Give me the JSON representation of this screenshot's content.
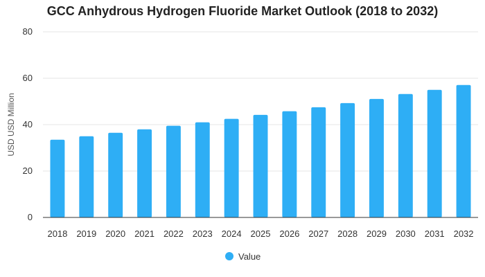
{
  "chart_data": {
    "type": "bar",
    "title": "GCC Anhydrous Hydrogen Fluoride Market Outlook (2018 to 2032)",
    "categories": [
      "2018",
      "2019",
      "2020",
      "2021",
      "2022",
      "2023",
      "2024",
      "2025",
      "2026",
      "2027",
      "2028",
      "2029",
      "2030",
      "2031",
      "2032"
    ],
    "series": [
      {
        "name": "Value",
        "color": "#2EAEF5",
        "values": [
          33.5,
          35.0,
          36.5,
          38.0,
          39.5,
          41.0,
          42.5,
          44.2,
          45.8,
          47.5,
          49.3,
          51.1,
          53.2,
          55.0,
          57.1
        ]
      }
    ],
    "xlabel": "",
    "ylabel": "USD USD Million",
    "ylim": [
      0,
      80
    ],
    "yticks": [
      0,
      20,
      40,
      60,
      80
    ],
    "grid": true,
    "legend_position": "bottom-center"
  }
}
